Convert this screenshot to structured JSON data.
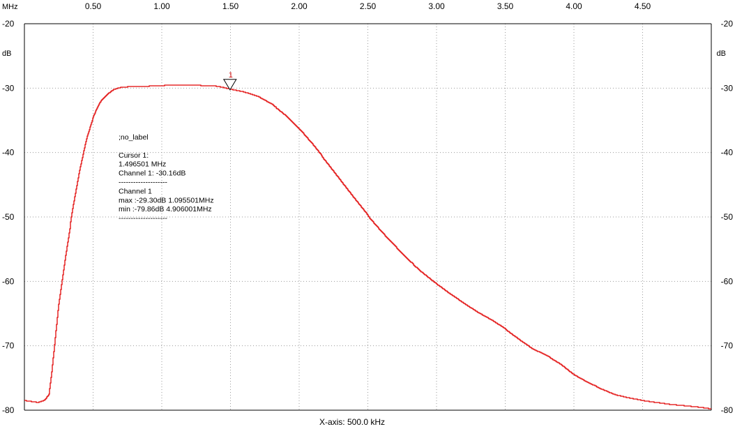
{
  "chart_data": {
    "type": "line",
    "x_unit": "MHz",
    "y_unit": "dB",
    "xlim": [
      0.0,
      5.0
    ],
    "ylim": [
      -80,
      -20
    ],
    "x_ticks": [
      0.5,
      1.0,
      1.5,
      2.0,
      2.5,
      3.0,
      3.5,
      4.0,
      4.5
    ],
    "x_tick_labels": [
      "0.50",
      "1.00",
      "1.50",
      "2.00",
      "2.50",
      "3.00",
      "3.50",
      "4.00",
      "4.50"
    ],
    "y_ticks": [
      -20,
      -30,
      -40,
      -50,
      -60,
      -70,
      -80
    ],
    "y_tick_labels": [
      "-20",
      "-30",
      "-40",
      "-50",
      "-60",
      "-70",
      "-80"
    ],
    "grid": true,
    "xlabel": "X-axis: 500.0 kHz",
    "series": [
      {
        "color": "#e00000",
        "x": [
          0.0,
          0.1,
          0.15,
          0.18,
          0.2,
          0.25,
          0.3,
          0.35,
          0.4,
          0.45,
          0.5,
          0.55,
          0.6,
          0.65,
          0.7,
          0.75,
          0.8,
          0.9,
          1.0,
          1.1,
          1.2,
          1.3,
          1.4,
          1.5,
          1.6,
          1.7,
          1.8,
          1.9,
          2.0,
          2.1,
          2.2,
          2.3,
          2.4,
          2.5,
          2.6,
          2.7,
          2.8,
          2.9,
          3.0,
          3.1,
          3.2,
          3.3,
          3.4,
          3.5,
          3.6,
          3.7,
          3.8,
          3.9,
          4.0,
          4.1,
          4.2,
          4.3,
          4.4,
          4.5,
          4.6,
          4.7,
          4.8,
          4.9,
          5.0
        ],
        "y": [
          -78.5,
          -78.8,
          -78.4,
          -77.5,
          -74.0,
          -63.5,
          -56.0,
          -49.0,
          -43.0,
          -38.0,
          -34.5,
          -32.2,
          -31.0,
          -30.2,
          -29.9,
          -29.8,
          -29.8,
          -29.7,
          -29.6,
          -29.5,
          -29.5,
          -29.6,
          -29.7,
          -30.16,
          -30.6,
          -31.3,
          -32.5,
          -34.2,
          -36.3,
          -38.8,
          -41.5,
          -44.3,
          -47.1,
          -49.8,
          -52.3,
          -54.6,
          -56.8,
          -58.7,
          -60.4,
          -62.0,
          -63.4,
          -64.8,
          -66.0,
          -67.4,
          -69.0,
          -70.5,
          -71.5,
          -72.8,
          -74.5,
          -75.7,
          -76.7,
          -77.6,
          -78.1,
          -78.5,
          -78.8,
          -79.1,
          -79.3,
          -79.5,
          -79.8
        ]
      }
    ],
    "cursor": {
      "number": "1",
      "x": 1.496501,
      "y": -30.16
    }
  },
  "info_box": {
    "lines": [
      ";no_label",
      "",
      "Cursor 1:",
      "1.496501 MHz",
      "Channel 1: -30.16dB",
      "--------------------",
      "Channel 1",
      "max :-29.30dB 1.095501MHz",
      "min :-79.86dB 4.906001MHz",
      "--------------------"
    ]
  },
  "colors": {
    "trace": "#e00000",
    "cursor_label": "#cc0000",
    "grid": "#9a9a9a"
  }
}
